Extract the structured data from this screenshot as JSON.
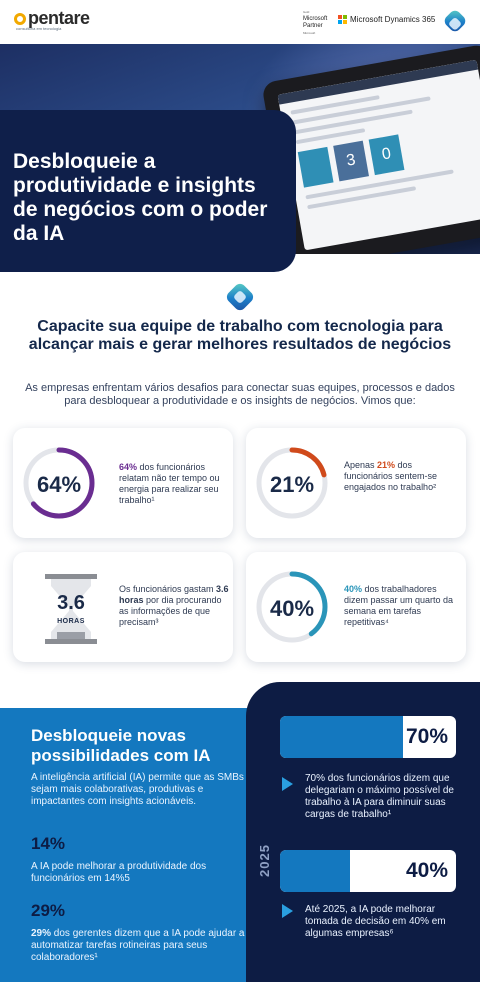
{
  "header": {
    "logo_text": "pentare",
    "logo_sub": "consultoria em tecnologia",
    "partner_gold": "Gold",
    "partner_line1": "Microsoft",
    "partner_line2": "Partner",
    "partner_ms": "Microsoft",
    "dynamics": "Microsoft Dynamics 365"
  },
  "hero": {
    "title": "Desbloqueie a produtividade e insights de negócios com o poder da IA",
    "tablet_screen": [
      "0",
      "3",
      "0"
    ]
  },
  "intro": {
    "heading": "Capacite sua equipe de trabalho com tecnologia para alcançar mais e gerar melhores resultados de negócios",
    "paragraph": "As empresas enfrentam vários desafios para conectar suas equipes, processos e dados para desbloquear a produtividade e os insights de negócios. Vimos que:"
  },
  "stats": [
    {
      "value": "64%",
      "percent": 64,
      "color": "#6a2d91",
      "text_bold": "64%",
      "text": " dos funcionários relatam não ter tempo ou energia para realizar seu trabalho¹"
    },
    {
      "value": "21%",
      "percent": 21,
      "color": "#d04a1b",
      "text_pre": "Apenas ",
      "text_bold": "21%",
      "text": " dos funcionários sentem-se engajados no trabalho²"
    },
    {
      "value": "3.6",
      "unit": "HORAS",
      "text_pre": "Os funcionários gastam ",
      "text_bold": "3.6 horas",
      "text": " por dia procurando as informações de que precisam³"
    },
    {
      "value": "40%",
      "percent": 40,
      "color": "#2a95b9",
      "text_bold": "40%",
      "text": " dos trabalhadores dizem passar um quarto da semana em tarefas repetitivas⁴"
    }
  ],
  "bottom": {
    "title": "Desbloqueie novas possibilidades com IA",
    "paragraph": "A inteligência artificial (IA) permite que as SMBs sejam mais colaborativas, produtivas e impactantes com insights acionáveis.",
    "stat1_value": "14%",
    "stat1_text": "A IA pode melhorar a produtividade dos funcionários em 14%5",
    "stat2_value": "29%",
    "stat2_bold": "29%",
    "stat2_text": " dos gerentes dizem que a IA pode ajudar a automatizar tarefas rotineiras para seus colaboradores¹"
  },
  "right": {
    "bar1_value": "70%",
    "bar1_percent": 70,
    "bar1_text": "70% dos funcionários dizem que delegariam o máximo possível de trabalho à IA para diminuir suas cargas de trabalho¹",
    "year": "2025",
    "bar2_value": "40%",
    "bar2_percent": 40,
    "bar2_text": "Até 2025, a IA pode melhorar tomada de decisão em 40% em algumas empresas⁶"
  }
}
